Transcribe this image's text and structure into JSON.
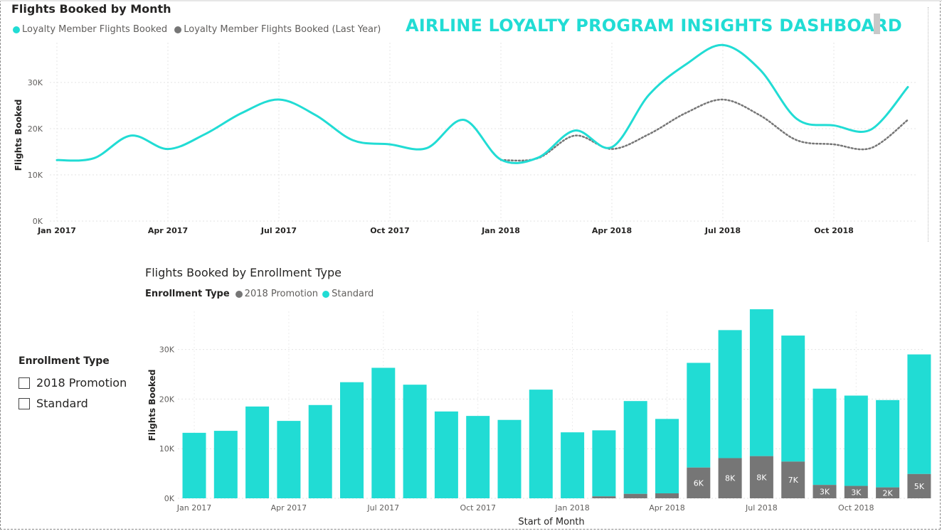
{
  "dashboard_title": "AIRLINE LOYALTY PROGRAM INSIGHTS DASHBOARD",
  "colors": {
    "teal": "#21dcd4",
    "gray": "#767676"
  },
  "slicer": {
    "title": "Enrollment Type",
    "options": [
      "2018 Promotion",
      "Standard"
    ]
  },
  "chart_data": [
    {
      "type": "line",
      "title": "Flights Booked by Month",
      "ylabel": "Flights Booked",
      "xlabel": "",
      "ylim": [
        0,
        40000
      ],
      "y_ticks": [
        "0K",
        "10K",
        "20K",
        "30K"
      ],
      "x_tick_labels": [
        "Jan 2017",
        "Apr 2017",
        "Jul 2017",
        "Oct 2017",
        "Jan 2018",
        "Apr 2018",
        "Jul 2018",
        "Oct 2018"
      ],
      "x": [
        "Jan 2017",
        "Feb 2017",
        "Mar 2017",
        "Apr 2017",
        "May 2017",
        "Jun 2017",
        "Jul 2017",
        "Aug 2017",
        "Sep 2017",
        "Oct 2017",
        "Nov 2017",
        "Dec 2017",
        "Jan 2018",
        "Feb 2018",
        "Mar 2018",
        "Apr 2018",
        "May 2018",
        "Jun 2018",
        "Jul 2018",
        "Aug 2018",
        "Sep 2018",
        "Oct 2018",
        "Nov 2018",
        "Dec 2018"
      ],
      "series": [
        {
          "name": "Loyalty Member Flights Booked",
          "color": "#21dcd4",
          "values": [
            13200,
            13600,
            18500,
            15600,
            18800,
            23400,
            26300,
            22900,
            17500,
            16600,
            15800,
            21900,
            13300,
            13700,
            19600,
            16000,
            27300,
            33900,
            38100,
            32800,
            22100,
            20700,
            19800,
            29000
          ]
        },
        {
          "name": "Loyalty Member Flights Booked (Last Year)",
          "color": "#767676",
          "dashed": true,
          "values": [
            null,
            null,
            null,
            null,
            null,
            null,
            null,
            null,
            null,
            null,
            null,
            null,
            13200,
            13600,
            18500,
            15600,
            18800,
            23400,
            26300,
            22900,
            17500,
            16600,
            15800,
            21900
          ]
        }
      ]
    },
    {
      "type": "bar",
      "stacked": true,
      "title": "Flights Booked by Enrollment Type",
      "legend_title": "Enrollment Type",
      "xlabel": "Start of Month",
      "ylabel": "Flights Booked",
      "ylim": [
        0,
        40000
      ],
      "y_ticks": [
        "0K",
        "10K",
        "20K",
        "30K"
      ],
      "x_tick_labels": [
        "Jan 2017",
        "Apr 2017",
        "Jul 2017",
        "Oct 2017",
        "Jan 2018",
        "Apr 2018",
        "Jul 2018",
        "Oct 2018"
      ],
      "categories": [
        "Jan 2017",
        "Feb 2017",
        "Mar 2017",
        "Apr 2017",
        "May 2017",
        "Jun 2017",
        "Jul 2017",
        "Aug 2017",
        "Sep 2017",
        "Oct 2017",
        "Nov 2017",
        "Dec 2017",
        "Jan 2018",
        "Feb 2018",
        "Mar 2018",
        "Apr 2018",
        "May 2018",
        "Jun 2018",
        "Jul 2018",
        "Aug 2018",
        "Sep 2018",
        "Oct 2018",
        "Nov 2018",
        "Dec 2018"
      ],
      "series": [
        {
          "name": "2018 Promotion",
          "color": "#767676",
          "values": [
            0,
            0,
            0,
            0,
            0,
            0,
            0,
            0,
            0,
            0,
            0,
            0,
            0,
            400,
            900,
            1000,
            6200,
            8100,
            8500,
            7400,
            2700,
            2500,
            2200,
            4900
          ],
          "labels": [
            "",
            "",
            "",
            "",
            "",
            "",
            "",
            "",
            "",
            "",
            "",
            "",
            "",
            "",
            "",
            "",
            "6K",
            "8K",
            "8K",
            "7K",
            "3K",
            "3K",
            "2K",
            "5K"
          ]
        },
        {
          "name": "Standard",
          "color": "#21dcd4",
          "values": [
            13200,
            13600,
            18500,
            15600,
            18800,
            23400,
            26300,
            22900,
            17500,
            16600,
            15800,
            21900,
            13300,
            13300,
            18700,
            15000,
            21100,
            25800,
            29600,
            25400,
            19400,
            18200,
            17600,
            24100
          ]
        }
      ]
    }
  ]
}
